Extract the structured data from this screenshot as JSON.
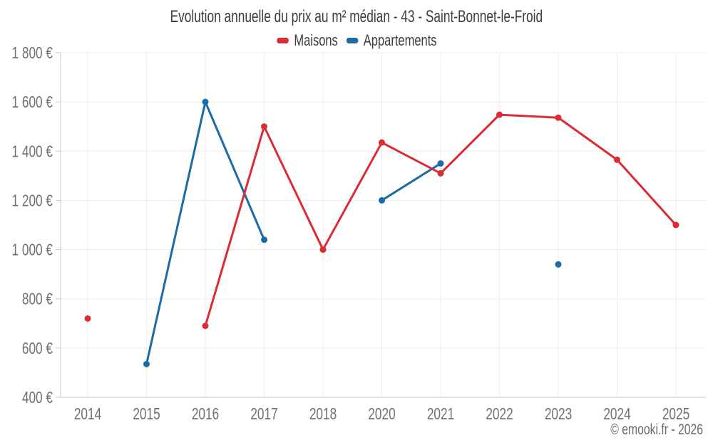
{
  "chart_data": {
    "type": "line",
    "title": "Evolution annuelle du prix au m² médian - 43 - Saint-Bonnet-le-Froid",
    "categories": [
      "2014",
      "2015",
      "2016",
      "2017",
      "2018",
      "2020",
      "2021",
      "2022",
      "2023",
      "2024",
      "2025"
    ],
    "series": [
      {
        "name": "Appartements",
        "color": "#1b6ca6",
        "values": [
          null,
          535,
          1600,
          1040,
          null,
          1200,
          1350,
          null,
          940,
          null,
          null
        ]
      },
      {
        "name": "Maisons",
        "color": "#da2c34",
        "values": [
          720,
          null,
          690,
          1500,
          1000,
          1435,
          1310,
          1548,
          1536,
          1365,
          1100
        ]
      }
    ],
    "legend_order": [
      "Maisons",
      "Appartements"
    ],
    "ylim": [
      400,
      1800
    ],
    "y_ticks": [
      400,
      600,
      800,
      1000,
      1200,
      1400,
      1600,
      1800
    ],
    "y_tick_labels": [
      "400 €",
      "600 €",
      "800 €",
      "1 000 €",
      "1 200 €",
      "1 400 €",
      "1 600 €",
      "1 800 €"
    ],
    "y_tick_suffix": " €",
    "xlabel": "",
    "ylabel": "",
    "grid": true,
    "legend_position": "top"
  },
  "watermark": {
    "text": "© emooki.fr - 2026"
  },
  "colors": {
    "background": "#ffffff",
    "grid": "#ececec",
    "axis": "#c8c8c8",
    "tick_label": "#6f6f6f",
    "title_text": "#3d3d3d",
    "watermark_text": "#6a6a6a",
    "maisons": "#da2c34",
    "appartements": "#1b6ca6"
  }
}
